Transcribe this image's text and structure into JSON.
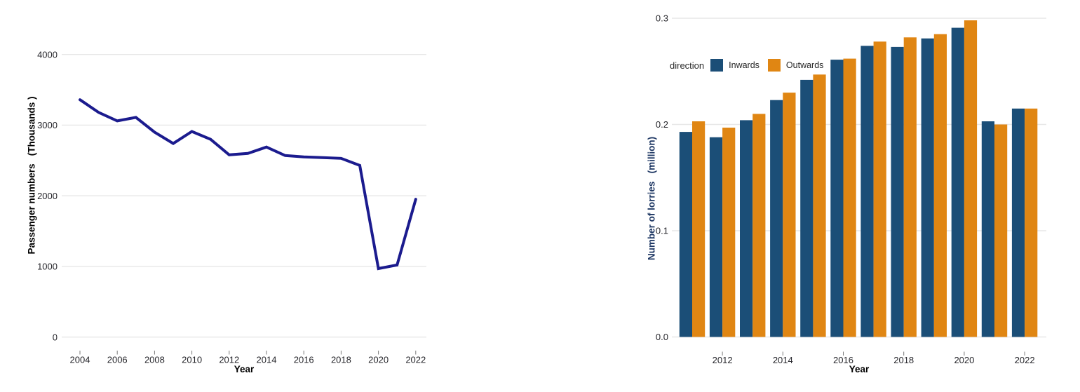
{
  "page": {
    "background": "#ffffff"
  },
  "style": {
    "grid_color": "#e7e7e7",
    "tick_color": "#7a7a7a",
    "tick_text_color": "#26262b",
    "left_axis_title_color": "#000000",
    "right_axis_title_color": "#1f3864"
  },
  "chart_data": [
    {
      "id": "passenger-line",
      "type": "line",
      "xlabel": "Year",
      "ylabel": "Passenger numbers   (Thousands )",
      "line_color": "#1b1b8e",
      "grid": "horizontal",
      "legend_position": "none",
      "x": [
        2004,
        2005,
        2006,
        2007,
        2008,
        2009,
        2010,
        2011,
        2012,
        2013,
        2014,
        2015,
        2016,
        2017,
        2018,
        2019,
        2020,
        2021,
        2022
      ],
      "values": [
        3360,
        3180,
        3060,
        3110,
        2900,
        2740,
        2910,
        2800,
        2580,
        2600,
        2690,
        2570,
        2550,
        2540,
        2530,
        2430,
        970,
        1020,
        1950
      ],
      "x_ticks": [
        2004,
        2006,
        2008,
        2010,
        2012,
        2014,
        2016,
        2018,
        2020,
        2022
      ],
      "y_ticks": [
        0,
        1000,
        2000,
        3000,
        4000
      ],
      "y_tick_labels": [
        "0",
        "1000",
        "2000",
        "3000",
        "4000"
      ],
      "ylim": [
        0,
        4400
      ]
    },
    {
      "id": "lorries-bar",
      "type": "bar",
      "xlabel": "Year",
      "ylabel": "Number of lorries   (million)",
      "legend_title": "direction",
      "grid": "horizontal",
      "legend_position": "inside-top-left",
      "categories": [
        2011,
        2012,
        2013,
        2014,
        2015,
        2016,
        2017,
        2018,
        2019,
        2020,
        2021,
        2022
      ],
      "series": [
        {
          "name": "Inwards",
          "color": "#1b4e77",
          "values": [
            0.193,
            0.188,
            0.204,
            0.223,
            0.242,
            0.261,
            0.274,
            0.273,
            0.281,
            0.291,
            0.203,
            0.215
          ]
        },
        {
          "name": "Outwards",
          "color": "#e08613",
          "values": [
            0.203,
            0.197,
            0.21,
            0.23,
            0.247,
            0.262,
            0.278,
            0.282,
            0.285,
            0.298,
            0.2,
            0.215
          ]
        }
      ],
      "x_ticks": [
        2012,
        2014,
        2016,
        2018,
        2020,
        2022
      ],
      "y_ticks": [
        0,
        0.1,
        0.2,
        0.3
      ],
      "y_tick_labels": [
        "0.0",
        "0.1",
        "0.2",
        "0.3"
      ],
      "ylim": [
        0,
        0.3
      ]
    }
  ]
}
